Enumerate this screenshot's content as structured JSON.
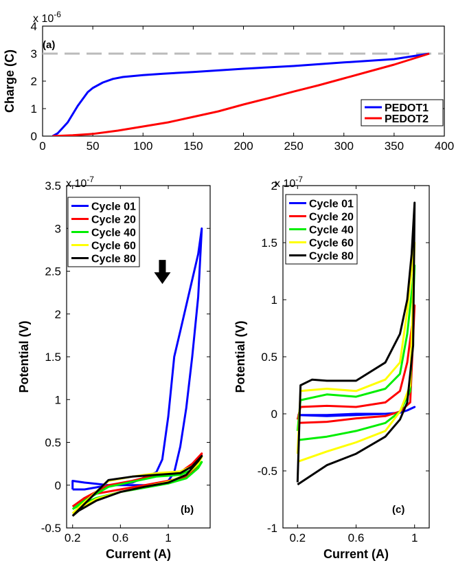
{
  "chart_data": [
    {
      "type": "line",
      "panel_label": "(a)",
      "xlabel": "",
      "ylabel": "Charge (C)",
      "xlim": [
        0,
        400
      ],
      "ylim": [
        0,
        4
      ],
      "y_multiplier": "x 10",
      "y_multiplier_exp": "-6",
      "xticks": [
        0,
        50,
        100,
        150,
        200,
        250,
        300,
        350,
        400
      ],
      "yticks": [
        0,
        1,
        2,
        3,
        4
      ],
      "legend_position": "bottom-right",
      "reference_line": {
        "y": 3,
        "color": "#bbbbbb",
        "style": "dashed"
      },
      "series": [
        {
          "name": "PEDOT1",
          "color": "#0000ff",
          "x": [
            10,
            15,
            20,
            25,
            30,
            35,
            40,
            45,
            50,
            60,
            70,
            80,
            100,
            120,
            150,
            200,
            250,
            300,
            350,
            385
          ],
          "y": [
            0,
            0.1,
            0.3,
            0.5,
            0.8,
            1.1,
            1.35,
            1.6,
            1.75,
            1.95,
            2.08,
            2.15,
            2.22,
            2.27,
            2.33,
            2.45,
            2.55,
            2.68,
            2.8,
            3.0
          ]
        },
        {
          "name": "PEDOT2",
          "color": "#ff0000",
          "x": [
            10,
            30,
            50,
            75,
            100,
            125,
            150,
            175,
            200,
            225,
            250,
            275,
            300,
            325,
            350,
            385
          ],
          "y": [
            0,
            0.03,
            0.08,
            0.2,
            0.35,
            0.5,
            0.7,
            0.9,
            1.15,
            1.38,
            1.62,
            1.85,
            2.1,
            2.35,
            2.6,
            3.0
          ]
        }
      ]
    },
    {
      "type": "line",
      "panel_label": "(b)",
      "xlabel": "Current (A)",
      "ylabel": "Potential (V)",
      "xlim": [
        0.15,
        1.35
      ],
      "ylim": [
        -0.5,
        3.5
      ],
      "y_multiplier": "x 10",
      "y_multiplier_exp": "-7",
      "xticks": [
        0.2,
        0.6,
        1
      ],
      "yticks": [
        -0.5,
        0,
        0.5,
        1,
        1.5,
        2,
        2.5,
        3,
        3.5
      ],
      "legend_position": "top-left",
      "annotation": "down-arrow",
      "series": [
        {
          "name": "Cycle 01",
          "color": "#0000ff",
          "x": [
            0.2,
            0.3,
            0.5,
            0.7,
            0.9,
            0.95,
            1.0,
            1.05,
            1.1,
            1.15,
            1.2,
            1.25,
            1.28,
            1.25,
            1.2,
            1.15,
            1.1,
            1.05,
            1.0,
            0.95,
            0.9,
            0.7,
            0.5,
            0.3,
            0.2,
            0.2
          ],
          "y": [
            -0.05,
            -0.05,
            0.0,
            0.03,
            0.15,
            0.3,
            0.8,
            1.5,
            1.8,
            2.1,
            2.4,
            2.7,
            3.0,
            2.2,
            1.5,
            0.9,
            0.45,
            0.15,
            0.05,
            0.02,
            0.0,
            0.0,
            0.0,
            0.03,
            0.05,
            -0.05
          ]
        },
        {
          "name": "Cycle 20",
          "color": "#ff0000",
          "x": [
            0.2,
            0.3,
            0.5,
            0.7,
            0.9,
            1.1,
            1.2,
            1.28,
            1.25,
            1.15,
            1.0,
            0.8,
            0.6,
            0.4,
            0.25,
            0.2
          ],
          "y": [
            -0.25,
            -0.15,
            0.0,
            0.05,
            0.12,
            0.15,
            0.25,
            0.37,
            0.22,
            0.1,
            0.05,
            0.0,
            -0.05,
            -0.1,
            -0.2,
            -0.25
          ]
        },
        {
          "name": "Cycle 40",
          "color": "#00ee00",
          "x": [
            0.2,
            0.3,
            0.5,
            0.7,
            0.9,
            1.1,
            1.2,
            1.28,
            1.25,
            1.15,
            1.0,
            0.8,
            0.6,
            0.4,
            0.25,
            0.2
          ],
          "y": [
            -0.28,
            -0.18,
            -0.02,
            0.04,
            0.1,
            0.12,
            0.18,
            0.27,
            0.2,
            0.08,
            0.02,
            -0.03,
            -0.08,
            -0.15,
            -0.24,
            -0.28
          ]
        },
        {
          "name": "Cycle 60",
          "color": "#ffff00",
          "x": [
            0.2,
            0.3,
            0.5,
            0.7,
            0.9,
            1.1,
            1.2,
            1.28,
            1.25,
            1.15,
            1.0,
            0.8,
            0.6,
            0.4,
            0.25,
            0.2
          ],
          "y": [
            -0.33,
            -0.2,
            0.05,
            0.1,
            0.14,
            0.16,
            0.22,
            0.33,
            0.25,
            0.12,
            0.04,
            -0.02,
            -0.08,
            -0.16,
            -0.28,
            -0.33
          ]
        },
        {
          "name": "Cycle 80",
          "color": "#000000",
          "x": [
            0.2,
            0.3,
            0.5,
            0.7,
            0.9,
            1.1,
            1.2,
            1.28,
            1.25,
            1.15,
            1.0,
            0.8,
            0.6,
            0.4,
            0.25,
            0.2
          ],
          "y": [
            -0.36,
            -0.22,
            0.06,
            0.1,
            0.12,
            0.14,
            0.22,
            0.34,
            0.28,
            0.12,
            0.03,
            -0.02,
            -0.08,
            -0.18,
            -0.3,
            -0.36
          ]
        }
      ]
    },
    {
      "type": "line",
      "panel_label": "(c)",
      "xlabel": "Current (A)",
      "ylabel": "Potential (V)",
      "xlim": [
        0.1,
        1.1
      ],
      "ylim": [
        -1,
        2
      ],
      "y_multiplier": "x 10",
      "y_multiplier_exp": "-7",
      "xticks": [
        0.2,
        0.6,
        1
      ],
      "yticks": [
        -1,
        -0.5,
        0,
        0.5,
        1,
        1.5,
        2
      ],
      "legend_position": "top-left",
      "series": [
        {
          "name": "Cycle 01",
          "color": "#0000ff",
          "x": [
            0.2,
            0.4,
            0.6,
            0.8,
            0.9,
            0.95,
            1.0,
            0.95,
            0.9,
            0.8,
            0.6,
            0.4,
            0.2
          ],
          "y": [
            -0.01,
            -0.01,
            0.0,
            0.0,
            0.01,
            0.03,
            0.06,
            0.03,
            0.01,
            0.0,
            -0.01,
            -0.02,
            -0.01
          ]
        },
        {
          "name": "Cycle 20",
          "color": "#ff0000",
          "x": [
            0.2,
            0.22,
            0.4,
            0.6,
            0.8,
            0.9,
            0.95,
            1.0,
            0.97,
            0.9,
            0.8,
            0.6,
            0.4,
            0.2
          ],
          "y": [
            -0.05,
            0.06,
            0.07,
            0.06,
            0.1,
            0.2,
            0.45,
            0.95,
            0.1,
            0.02,
            -0.02,
            -0.04,
            -0.07,
            -0.08
          ]
        },
        {
          "name": "Cycle 40",
          "color": "#00ee00",
          "x": [
            0.2,
            0.22,
            0.4,
            0.6,
            0.8,
            0.9,
            0.95,
            1.0,
            0.97,
            0.9,
            0.8,
            0.6,
            0.4,
            0.2
          ],
          "y": [
            -0.15,
            0.12,
            0.17,
            0.15,
            0.22,
            0.35,
            0.7,
            1.3,
            0.2,
            0.02,
            -0.08,
            -0.15,
            -0.2,
            -0.23
          ]
        },
        {
          "name": "Cycle 60",
          "color": "#ffff00",
          "x": [
            0.2,
            0.22,
            0.4,
            0.6,
            0.8,
            0.9,
            0.95,
            1.0,
            0.97,
            0.9,
            0.8,
            0.6,
            0.4,
            0.2
          ],
          "y": [
            -0.35,
            0.2,
            0.22,
            0.2,
            0.3,
            0.45,
            0.9,
            1.5,
            0.25,
            0.02,
            -0.15,
            -0.25,
            -0.33,
            -0.42
          ]
        },
        {
          "name": "Cycle 80",
          "color": "#000000",
          "x": [
            0.2,
            0.22,
            0.3,
            0.4,
            0.6,
            0.8,
            0.9,
            0.95,
            0.98,
            1.0,
            0.99,
            0.95,
            0.9,
            0.8,
            0.6,
            0.4,
            0.2
          ],
          "y": [
            -0.6,
            0.25,
            0.3,
            0.29,
            0.29,
            0.45,
            0.7,
            1.0,
            1.4,
            1.85,
            0.6,
            0.1,
            -0.05,
            -0.2,
            -0.35,
            -0.45,
            -0.62
          ]
        }
      ]
    }
  ]
}
